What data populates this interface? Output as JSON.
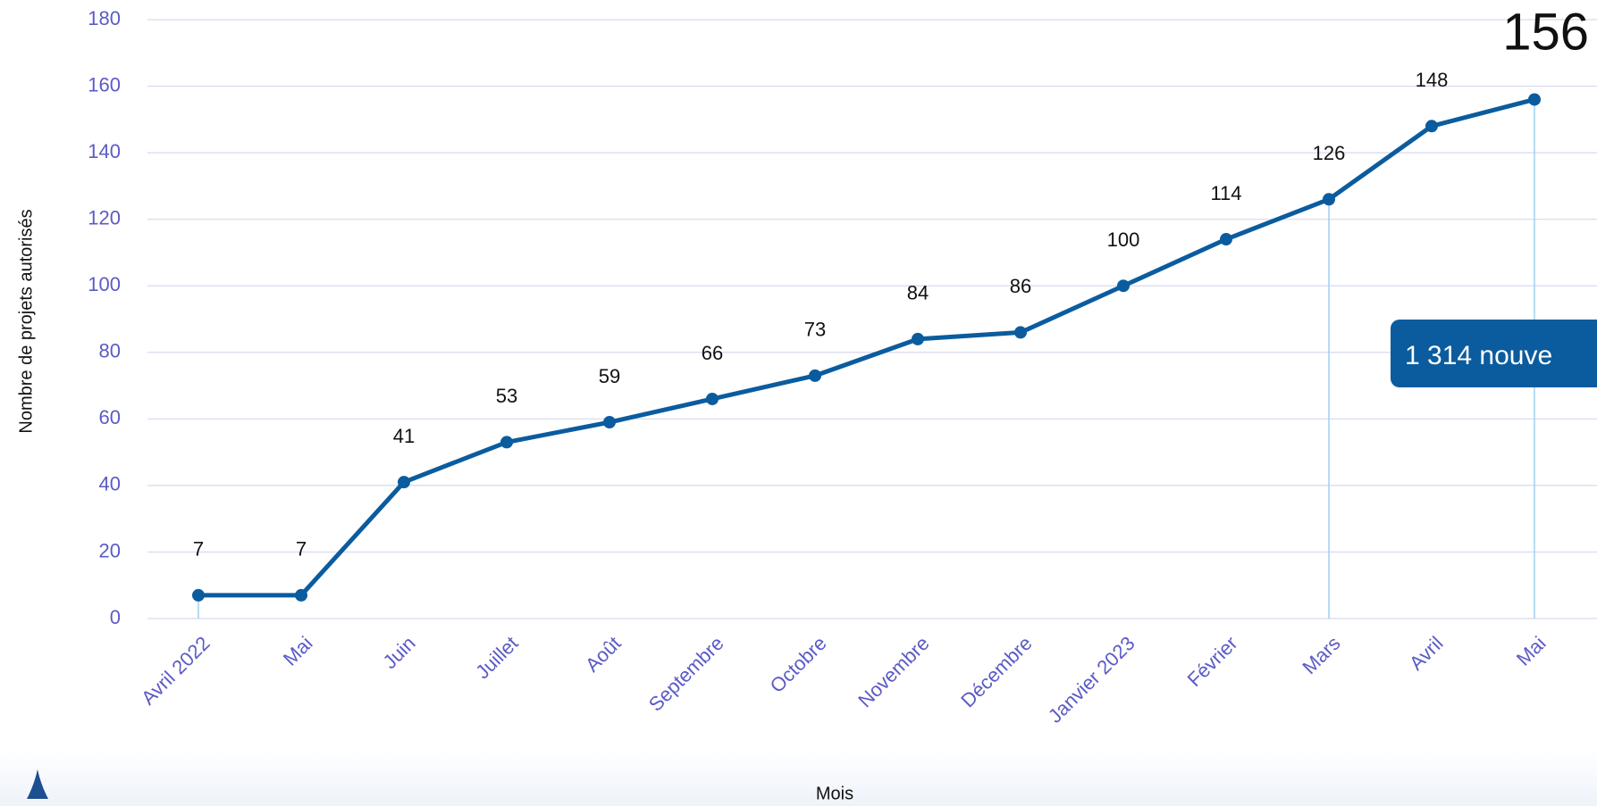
{
  "chart_data": {
    "type": "line",
    "y_label": "Nombre de projets autorisés",
    "x_label": "Mois",
    "categories": [
      "Avril 2022",
      "Mai",
      "Juin",
      "Juillet",
      "Août",
      "Septembre",
      "Octobre",
      "Novembre",
      "Décembre",
      "Janvier 2023",
      "Février",
      "Mars",
      "Avril",
      "Mai"
    ],
    "values": [
      7,
      7,
      41,
      53,
      59,
      66,
      73,
      84,
      86,
      100,
      114,
      126,
      148,
      156
    ],
    "color": "#0b5c9e",
    "ylim": [
      0,
      180
    ],
    "yticks": [
      0,
      20,
      40,
      60,
      80,
      100,
      120,
      140,
      160,
      180
    ],
    "grid": true,
    "annotation": "1 314 nouve"
  }
}
